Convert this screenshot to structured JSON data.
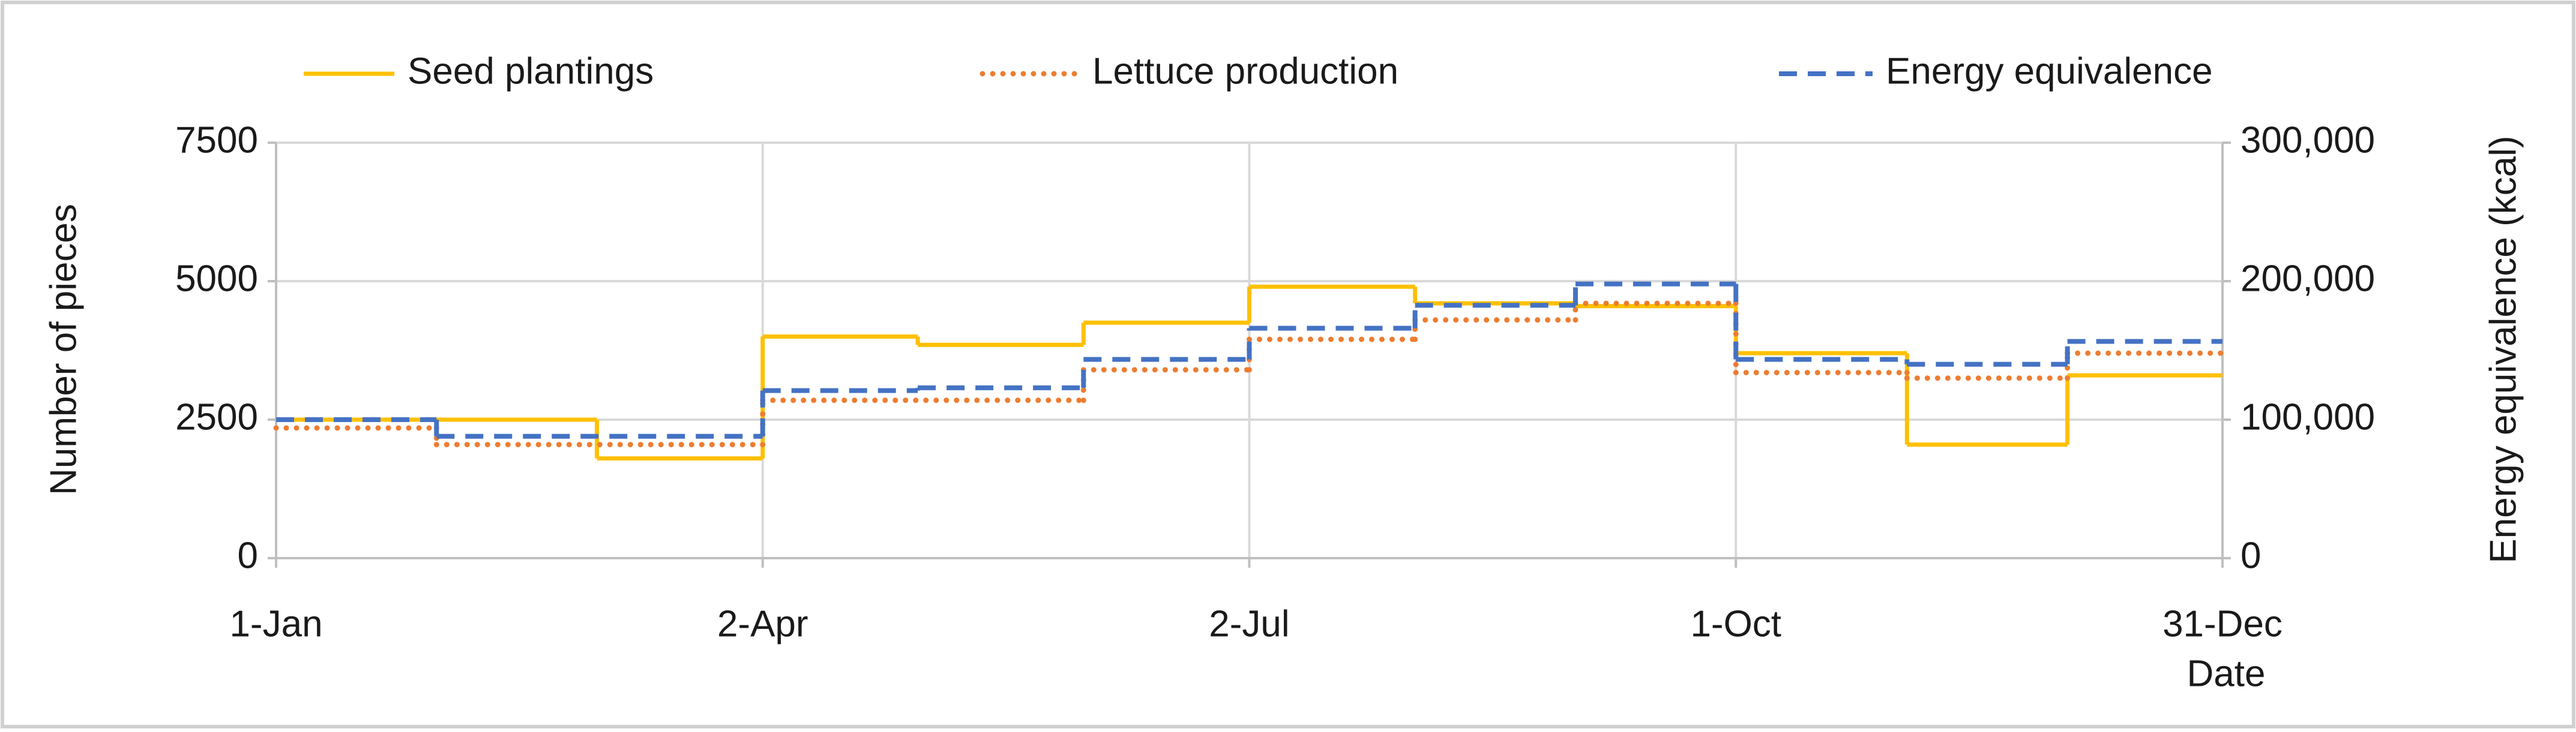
{
  "chart_data": {
    "type": "step",
    "xlabel": "Date",
    "ylabel": "Number of pieces",
    "y2label": "Energy equivalence (kcal)",
    "xlim": [
      1,
      365
    ],
    "xticks": [
      {
        "value": 1,
        "label": "1-Jan"
      },
      {
        "value": 92,
        "label": "2-Apr"
      },
      {
        "value": 183,
        "label": "2-Jul"
      },
      {
        "value": 274,
        "label": "1-Oct"
      },
      {
        "value": 365,
        "label": "31-Dec"
      }
    ],
    "ylim": [
      0,
      7500
    ],
    "yticks": [
      0,
      2500,
      5000,
      7500
    ],
    "y2lim": [
      0,
      300000
    ],
    "y2ticks": [
      0,
      {
        "value": 100000,
        "label": "100,000"
      },
      {
        "value": 200000,
        "label": "200,000"
      },
      {
        "value": 300000,
        "label": "300,000"
      }
    ],
    "grid": true,
    "legend": "top",
    "series": [
      {
        "name": "Seed plantings",
        "color": "#FFC000",
        "style": "solid",
        "x": [
          1,
          61,
          92,
          121,
          152,
          183,
          214,
          244,
          274,
          306,
          336,
          365
        ],
        "values": [
          2500,
          1800,
          4000,
          3850,
          4250,
          4900,
          4600,
          4550,
          3700,
          2050,
          3300,
          3300
        ]
      },
      {
        "name": "Lettuce production",
        "color": "#ED7D31",
        "style": "dotted",
        "x": [
          1,
          31,
          92,
          152,
          183,
          214,
          244,
          274,
          306,
          336,
          365
        ],
        "values": [
          2350,
          2050,
          2850,
          3400,
          3950,
          4300,
          4600,
          3350,
          3250,
          3700,
          3700
        ]
      },
      {
        "name": "Energy equivalence",
        "color": "#4472C4",
        "style": "dashed",
        "axis": "y2",
        "x": [
          1,
          31,
          92,
          121,
          152,
          183,
          214,
          244,
          274,
          306,
          336,
          365
        ],
        "values": [
          100000,
          88000,
          121000,
          123000,
          143500,
          166000,
          182600,
          198000,
          143500,
          140000,
          156500,
          156500
        ]
      }
    ]
  }
}
